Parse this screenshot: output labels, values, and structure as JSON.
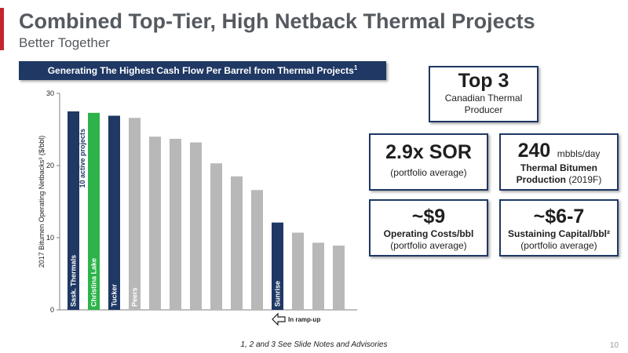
{
  "header": {
    "title": "Combined Top-Tier, High Netback Thermal Projects",
    "subtitle": "Better Together"
  },
  "chart_header": {
    "text": "Generating The Highest Cash Flow Per Barrel from Thermal Projects",
    "footnote": "1"
  },
  "chart_data": {
    "type": "bar",
    "ylabel": "2017 Bitumen Operating Netbacks³ ($/bbl)",
    "ylim": [
      0,
      30
    ],
    "yticks": [
      0,
      10,
      20,
      30
    ],
    "grid": false,
    "values": [
      27.5,
      27.3,
      26.9,
      26.6,
      24.0,
      23.7,
      23.2,
      20.3,
      18.5,
      16.6,
      12.1,
      10.7,
      9.3,
      8.9
    ],
    "bar_labels": [
      "Sask. Thermals",
      "Christina Lake",
      "Tucker",
      "Peers",
      "",
      "",
      "",
      "",
      "",
      "",
      "Sunrise",
      "",
      "",
      ""
    ],
    "bar_colors": [
      "#1f3864",
      "#2db34a",
      "#1f3864",
      "#b8b8b8",
      "#b8b8b8",
      "#b8b8b8",
      "#b8b8b8",
      "#b8b8b8",
      "#b8b8b8",
      "#b8b8b8",
      "#1f3864",
      "#b8b8b8",
      "#b8b8b8",
      "#b8b8b8"
    ],
    "annotation_active": "10 active projects",
    "annotation_ramp": "In ramp-up"
  },
  "boxes": {
    "top3": {
      "big": "Top 3",
      "line1": "Canadian Thermal",
      "line2": "Producer"
    },
    "sor": {
      "big": "2.9x SOR",
      "sub": "(portfolio average)"
    },
    "production": {
      "big": "240",
      "unit": "mbbls/day",
      "line1": "Thermal Bitumen",
      "line2_bold": "Production",
      "line2_rest": " (2019F)"
    },
    "opex": {
      "big": "~$9",
      "line1": "Operating Costs/bbl",
      "line2": "(portfolio average)"
    },
    "sustaining": {
      "big": "~$6-7",
      "line1": "Sustaining Capital/bbl²",
      "line2": "(portfolio average)"
    }
  },
  "footer": {
    "note": "1, 2 and 3 See Slide Notes and Advisories",
    "page": "10"
  },
  "colors": {
    "navy": "#1f3864",
    "green": "#2db34a",
    "gray": "#b8b8b8",
    "red_accent": "#c4262e"
  }
}
